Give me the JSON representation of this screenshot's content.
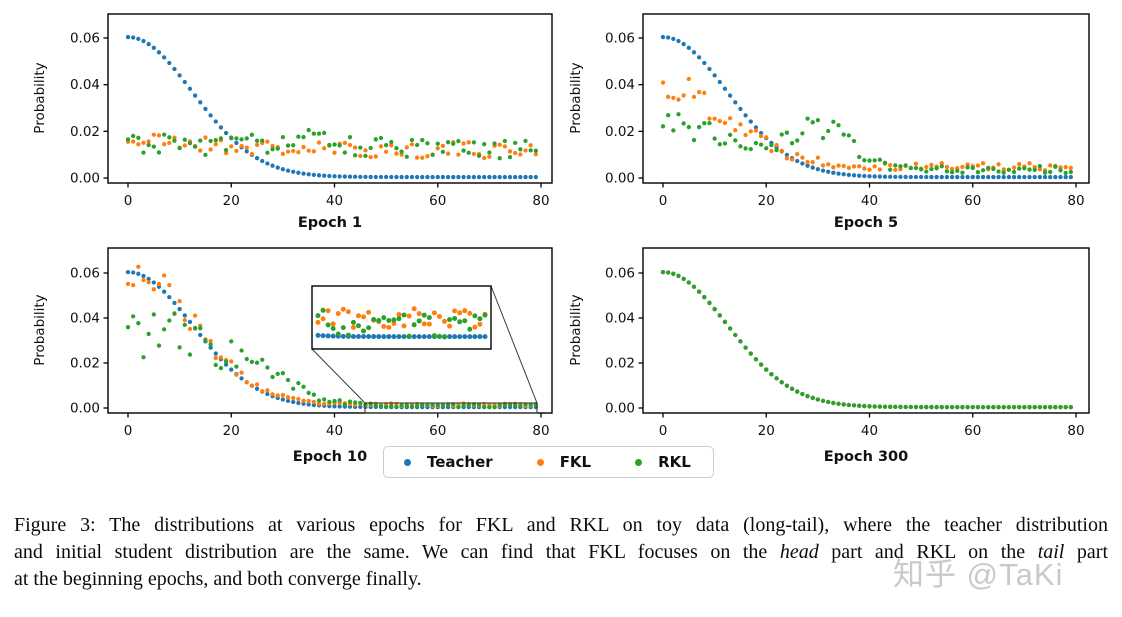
{
  "figure": {
    "background": "#ffffff",
    "series_colors": {
      "teacher": "#1f77b4",
      "fkl": "#ff7f0e",
      "rkl": "#2ca02c"
    },
    "ylabel": "Probability",
    "xticks": [
      0,
      20,
      40,
      60,
      80
    ],
    "ytick_labels": [
      "0.00",
      "0.02",
      "0.04",
      "0.06"
    ],
    "yticks": [
      0,
      0.02,
      0.04,
      0.06
    ],
    "legend": {
      "items": [
        {
          "label": "Teacher",
          "color_key": "teacher"
        },
        {
          "label": "FKL",
          "color_key": "fkl"
        },
        {
          "label": "RKL",
          "color_key": "rkl"
        }
      ]
    }
  },
  "chart_data": [
    {
      "type": "scatter",
      "title": "Epoch 1",
      "xlabel": "Epoch 1",
      "ylabel": "Probability",
      "key": "epoch1",
      "x_range": [
        0,
        79
      ],
      "xticks": [
        0,
        20,
        40,
        60,
        80
      ],
      "yticks": [
        0,
        0.02,
        0.04,
        0.06
      ],
      "ylim": [
        -0.002,
        0.068
      ],
      "series": [
        {
          "name": "Teacher",
          "color_key": "teacher",
          "seed": 7,
          "curve": {
            "peak": 0.06,
            "sigma": 12.5,
            "floor": 0.0004
          },
          "noise": {
            "prop": 0,
            "abs": 0
          },
          "sample_points": [
            [
              0,
              0.0605
            ],
            [
              10,
              0.044
            ],
            [
              20,
              0.017
            ],
            [
              30,
              0.004
            ],
            [
              40,
              0.0008
            ],
            [
              60,
              0.0004
            ],
            [
              79,
              0.0004
            ]
          ]
        },
        {
          "name": "FKL",
          "color_key": "fkl",
          "seed": 21,
          "curve": {
            "peak": 0.004,
            "sigma": 15,
            "floor": 0.012
          },
          "noise": {
            "prop": 0,
            "abs": 0.0035
          },
          "sample_points": [
            [
              0,
              0.019
            ],
            [
              10,
              0.018
            ],
            [
              25,
              0.014
            ],
            [
              40,
              0.011
            ],
            [
              60,
              0.015
            ],
            [
              79,
              0.013
            ]
          ]
        },
        {
          "name": "RKL",
          "color_key": "rkl",
          "seed": 31,
          "curve": {
            "peak": 0.003,
            "sigma": 15,
            "floor": 0.012
          },
          "hump": {
            "h": 0.004,
            "x": 35,
            "sigma": 8
          },
          "noise": {
            "prop": 0,
            "abs": 0.0045
          },
          "sample_points": [
            [
              0,
              0.018
            ],
            [
              12,
              0.016
            ],
            [
              31,
              0.022
            ],
            [
              40,
              0.022
            ],
            [
              60,
              0.01
            ],
            [
              79,
              0.012
            ]
          ]
        }
      ]
    },
    {
      "type": "scatter",
      "title": "Epoch 5",
      "xlabel": "Epoch 5",
      "ylabel": "Probability",
      "key": "epoch5",
      "x_range": [
        0,
        79
      ],
      "xticks": [
        0,
        20,
        40,
        60,
        80
      ],
      "yticks": [
        0,
        0.02,
        0.04,
        0.06
      ],
      "ylim": [
        -0.002,
        0.068
      ],
      "series": [
        {
          "name": "Teacher",
          "color_key": "teacher",
          "seed": 7,
          "curve": {
            "peak": 0.06,
            "sigma": 12.5,
            "floor": 0.0004
          },
          "noise": {
            "prop": 0,
            "abs": 0
          },
          "sample_points": [
            [
              0,
              0.0605
            ],
            [
              10,
              0.044
            ],
            [
              20,
              0.017
            ],
            [
              30,
              0.004
            ],
            [
              40,
              0.0008
            ],
            [
              60,
              0.0004
            ],
            [
              79,
              0.0004
            ]
          ]
        },
        {
          "name": "FKL",
          "color_key": "fkl",
          "seed": 22,
          "curve": {
            "peak": 0.034,
            "sigma": 13,
            "floor": 0.005
          },
          "noise": {
            "prop": 0.18,
            "abs": 0.0008
          },
          "sample_points": [
            [
              0,
              0.042
            ],
            [
              5,
              0.044
            ],
            [
              15,
              0.031
            ],
            [
              25,
              0.007
            ],
            [
              40,
              0.004
            ],
            [
              60,
              0.006
            ],
            [
              79,
              0.006
            ]
          ]
        },
        {
          "name": "RKL",
          "color_key": "rkl",
          "seed": 32,
          "curve": {
            "peak": 0.02,
            "sigma": 14,
            "floor": 0.0035
          },
          "hump": {
            "h": 0.016,
            "x": 31,
            "sigma": 6
          },
          "noise": {
            "prop": 0.22,
            "abs": 0.0008
          },
          "sample_points": [
            [
              0,
              0.027
            ],
            [
              8,
              0.028
            ],
            [
              18,
              0.033
            ],
            [
              31,
              0.03
            ],
            [
              37,
              0.022
            ],
            [
              60,
              0.004
            ],
            [
              79,
              0.004
            ]
          ]
        }
      ]
    },
    {
      "type": "scatter",
      "title": "Epoch 10",
      "xlabel": "Epoch 10",
      "ylabel": "Probability",
      "key": "epoch10",
      "x_range": [
        0,
        79
      ],
      "xticks": [
        0,
        20,
        40,
        60,
        80
      ],
      "yticks": [
        0,
        0.02,
        0.04,
        0.06
      ],
      "ylim": [
        -0.002,
        0.068
      ],
      "inset": {
        "x_range": [
          46,
          79
        ],
        "y_range": [
          -0.0002,
          0.0032
        ]
      },
      "series": [
        {
          "name": "Teacher",
          "color_key": "teacher",
          "seed": 7,
          "curve": {
            "peak": 0.06,
            "sigma": 12.5,
            "floor": 0.0004
          },
          "noise": {
            "prop": 0,
            "abs": 0
          },
          "sample_points": [
            [
              0,
              0.0605
            ],
            [
              10,
              0.044
            ],
            [
              20,
              0.017
            ],
            [
              30,
              0.004
            ],
            [
              40,
              0.0008
            ],
            [
              60,
              0.0004
            ],
            [
              79,
              0.0004
            ]
          ]
        },
        {
          "name": "FKL",
          "color_key": "fkl",
          "seed": 23,
          "curve": {
            "peak": 0.06,
            "sigma": 12.5,
            "floor": 0.0015
          },
          "noise": {
            "prop": 0.12,
            "abs": 0.0004
          },
          "sample_points": [
            [
              0,
              0.0635
            ],
            [
              3,
              0.05
            ],
            [
              10,
              0.048
            ],
            [
              18,
              0.016
            ],
            [
              30,
              0.003
            ],
            [
              60,
              0.0018
            ],
            [
              79,
              0.002
            ]
          ]
        },
        {
          "name": "RKL",
          "color_key": "rkl",
          "seed": 33,
          "curve": {
            "peak": 0.033,
            "sigma": 13,
            "floor": 0.001
          },
          "hump": {
            "h": 0.013,
            "x": 22,
            "sigma": 9
          },
          "noise": {
            "prop": 0.35,
            "abs": 0.0003
          },
          "sample_points": [
            [
              0,
              0.04
            ],
            [
              5,
              0.025
            ],
            [
              13,
              0.033
            ],
            [
              22,
              0.024
            ],
            [
              30,
              0.014
            ],
            [
              45,
              0.002
            ],
            [
              60,
              0.0012
            ],
            [
              79,
              0.0013
            ]
          ]
        }
      ]
    },
    {
      "type": "scatter",
      "title": "Epoch 300",
      "xlabel": "Epoch 300",
      "ylabel": "Probability",
      "key": "epoch300",
      "x_range": [
        0,
        79
      ],
      "xticks": [
        0,
        20,
        40,
        60,
        80
      ],
      "yticks": [
        0,
        0.02,
        0.04,
        0.06
      ],
      "ylim": [
        -0.002,
        0.068
      ],
      "note": "All three series have converged onto the teacher curve; RKL (green) drawn last hides the others",
      "series": [
        {
          "name": "Teacher",
          "color_key": "teacher",
          "seed": 7,
          "curve": {
            "peak": 0.06,
            "sigma": 12.5,
            "floor": 0.0004
          },
          "noise": {
            "prop": 0,
            "abs": 0
          },
          "sample_points": [
            [
              0,
              0.0605
            ],
            [
              10,
              0.044
            ],
            [
              20,
              0.017
            ],
            [
              30,
              0.004
            ],
            [
              40,
              0.0008
            ],
            [
              60,
              0.0004
            ],
            [
              79,
              0.0004
            ]
          ]
        },
        {
          "name": "FKL",
          "color_key": "fkl",
          "seed": 7,
          "curve": {
            "peak": 0.06,
            "sigma": 12.5,
            "floor": 0.0004
          },
          "noise": {
            "prop": 0,
            "abs": 0
          },
          "sample_points": [
            [
              0,
              0.0605
            ],
            [
              10,
              0.044
            ],
            [
              20,
              0.017
            ],
            [
              30,
              0.004
            ],
            [
              40,
              0.0008
            ],
            [
              60,
              0.0004
            ],
            [
              79,
              0.0004
            ]
          ]
        },
        {
          "name": "RKL",
          "color_key": "rkl",
          "seed": 7,
          "curve": {
            "peak": 0.06,
            "sigma": 12.5,
            "floor": 0.0004
          },
          "noise": {
            "prop": 0,
            "abs": 0
          },
          "sample_points": [
            [
              0,
              0.0605
            ],
            [
              10,
              0.044
            ],
            [
              20,
              0.017
            ],
            [
              30,
              0.004
            ],
            [
              40,
              0.0008
            ],
            [
              60,
              0.0004
            ],
            [
              79,
              0.0004
            ]
          ]
        }
      ]
    }
  ],
  "caption": {
    "line1": "Figure 3: The distributions at various epochs for FKL and RKL on toy data (long-tail), where the teacher distribution",
    "line2_a": "and initial student distribution are the same. We can find that FKL focuses on the ",
    "line2_head": "head",
    "line2_b": " part and RKL on the ",
    "line2_tail": "tail",
    "line2_c": " part",
    "line3": "at the beginning epochs, and both converge finally."
  },
  "watermark": {
    "text": "知乎 @TaKi"
  }
}
